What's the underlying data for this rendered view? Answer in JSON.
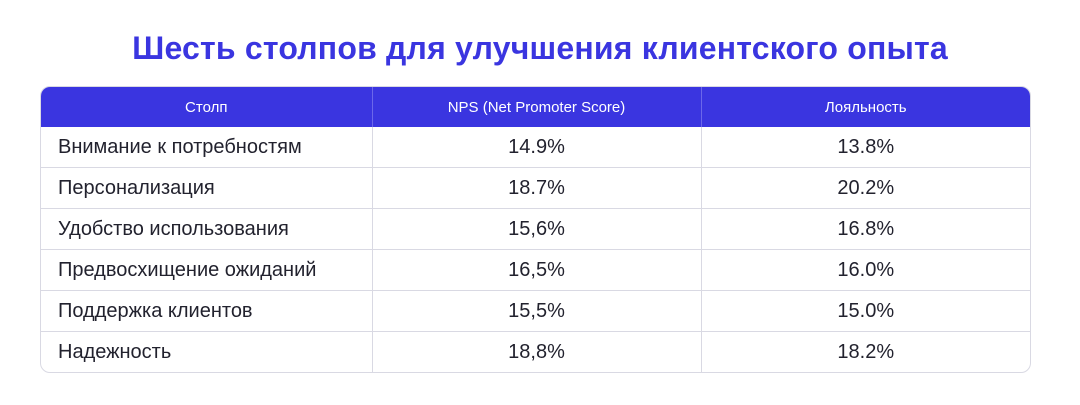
{
  "page": {
    "title": "Шесть столпов для улучшения клиентского опыта"
  },
  "table": {
    "headers": [
      "Столп",
      "NPS (Net Promoter Score)",
      "Лояльность"
    ],
    "rows": [
      [
        "Внимание к потребностям",
        "14.9%",
        "13.8%"
      ],
      [
        "Персонализация",
        "18.7%",
        "20.2%"
      ],
      [
        "Удобство использования",
        "15,6%",
        "16.8%"
      ],
      [
        "Предвосхищение ожиданий",
        "16,5%",
        "16.0%"
      ],
      [
        "Поддержка клиентов",
        "15,5%",
        "15.0%"
      ],
      [
        "Надежность",
        "18,8%",
        "18.2%"
      ]
    ]
  },
  "colors": {
    "accent": "#3a35e0",
    "header_text": "#ffffff",
    "border": "#d9d9e3"
  }
}
